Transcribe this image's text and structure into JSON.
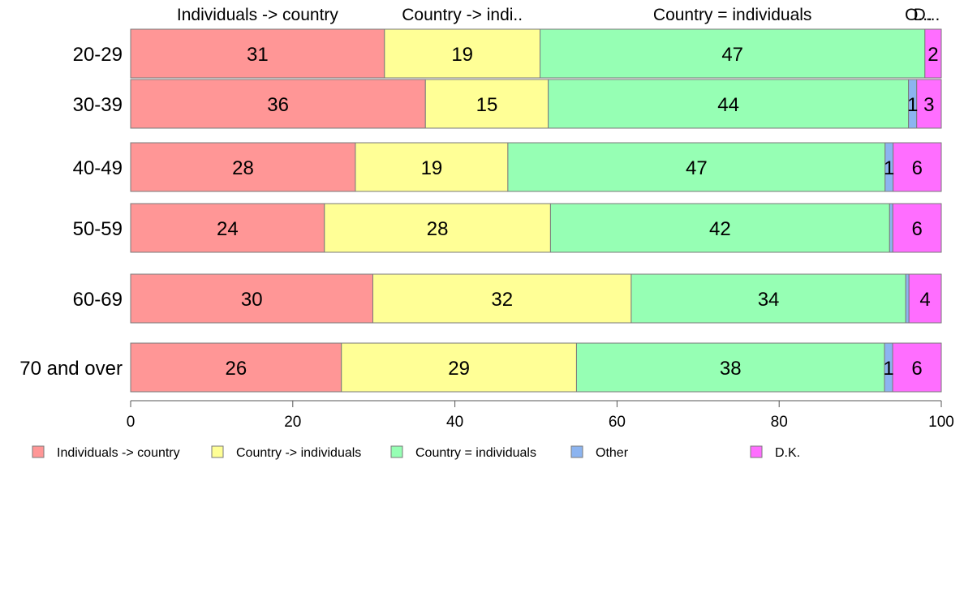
{
  "chart_data": {
    "type": "bar",
    "orientation": "horizontal",
    "stacked": true,
    "categories": [
      "20-29",
      "30-39",
      "40-49",
      "50-59",
      "60-69",
      "70 and over"
    ],
    "series": [
      {
        "name": "Individuals -> country",
        "color": "#ff9696",
        "values": [
          31,
          36,
          28,
          24,
          30,
          26
        ],
        "labels": [
          "31",
          "36",
          "28",
          "24",
          "30",
          "26"
        ]
      },
      {
        "name": "Country -> individuals",
        "color": "#ffff96",
        "values": [
          19,
          15,
          19,
          28,
          32,
          29
        ],
        "labels": [
          "19",
          "15",
          "19",
          "28",
          "32",
          "29"
        ]
      },
      {
        "name": "Country = individuals",
        "color": "#96ffb4",
        "values": [
          47,
          44,
          47,
          42,
          34,
          38
        ],
        "labels": [
          "47",
          "44",
          "47",
          "42",
          "34",
          "38"
        ]
      },
      {
        "name": "Other",
        "color": "#8cb4f0",
        "values": [
          0,
          1,
          1,
          0.4,
          0.4,
          1
        ],
        "labels": [
          "",
          "1",
          "1",
          "",
          "",
          "1"
        ]
      },
      {
        "name": "D.K.",
        "color": "#ff6eff",
        "values": [
          2,
          3,
          6,
          6,
          4,
          6
        ],
        "labels": [
          "2",
          "3",
          "6",
          "6",
          "4",
          "6"
        ]
      }
    ],
    "top_labels": [
      "Individuals -> country",
      "Country -> indi..",
      "Country = individuals",
      "O...",
      "D..."
    ],
    "xlim": [
      0,
      100
    ],
    "xticks": [
      "0",
      "20",
      "40",
      "60",
      "80",
      "100"
    ],
    "grid": false,
    "legend_position": "bottom"
  }
}
